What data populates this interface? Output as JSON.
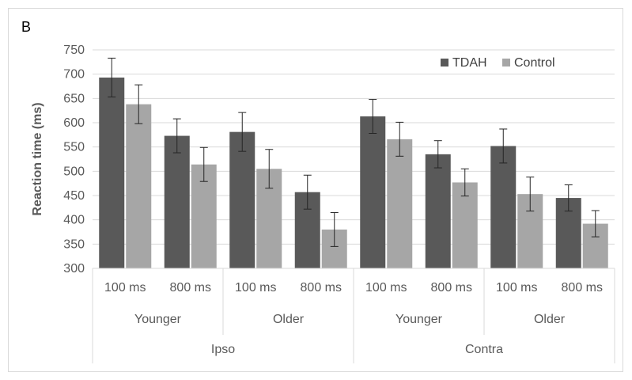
{
  "panel_label": "B",
  "chart_data": {
    "type": "bar",
    "ylabel": "Reaction time (ms)",
    "ylim": [
      300,
      750
    ],
    "yticks": [
      300,
      350,
      400,
      450,
      500,
      550,
      600,
      650,
      700,
      750
    ],
    "grid": true,
    "legend_position": "top-right",
    "categories": [
      "100 ms",
      "800 ms",
      "100 ms",
      "800 ms",
      "100 ms",
      "800 ms",
      "100 ms",
      "800 ms"
    ],
    "group_level2": [
      {
        "label": "Younger",
        "span": 2
      },
      {
        "label": "Older",
        "span": 2
      },
      {
        "label": "Younger",
        "span": 2
      },
      {
        "label": "Older",
        "span": 2
      }
    ],
    "group_level3": [
      {
        "label": "Ipso",
        "span": 4
      },
      {
        "label": "Contra",
        "span": 4
      }
    ],
    "series": [
      {
        "name": "TDAH",
        "color": "#595959",
        "values": [
          693,
          573,
          581,
          457,
          613,
          535,
          552,
          445
        ],
        "errors": [
          40,
          35,
          40,
          35,
          35,
          28,
          35,
          27
        ]
      },
      {
        "name": "Control",
        "color": "#a6a6a6",
        "values": [
          638,
          514,
          505,
          380,
          566,
          477,
          453,
          392
        ],
        "errors": [
          40,
          35,
          40,
          35,
          35,
          28,
          35,
          27
        ]
      }
    ]
  }
}
